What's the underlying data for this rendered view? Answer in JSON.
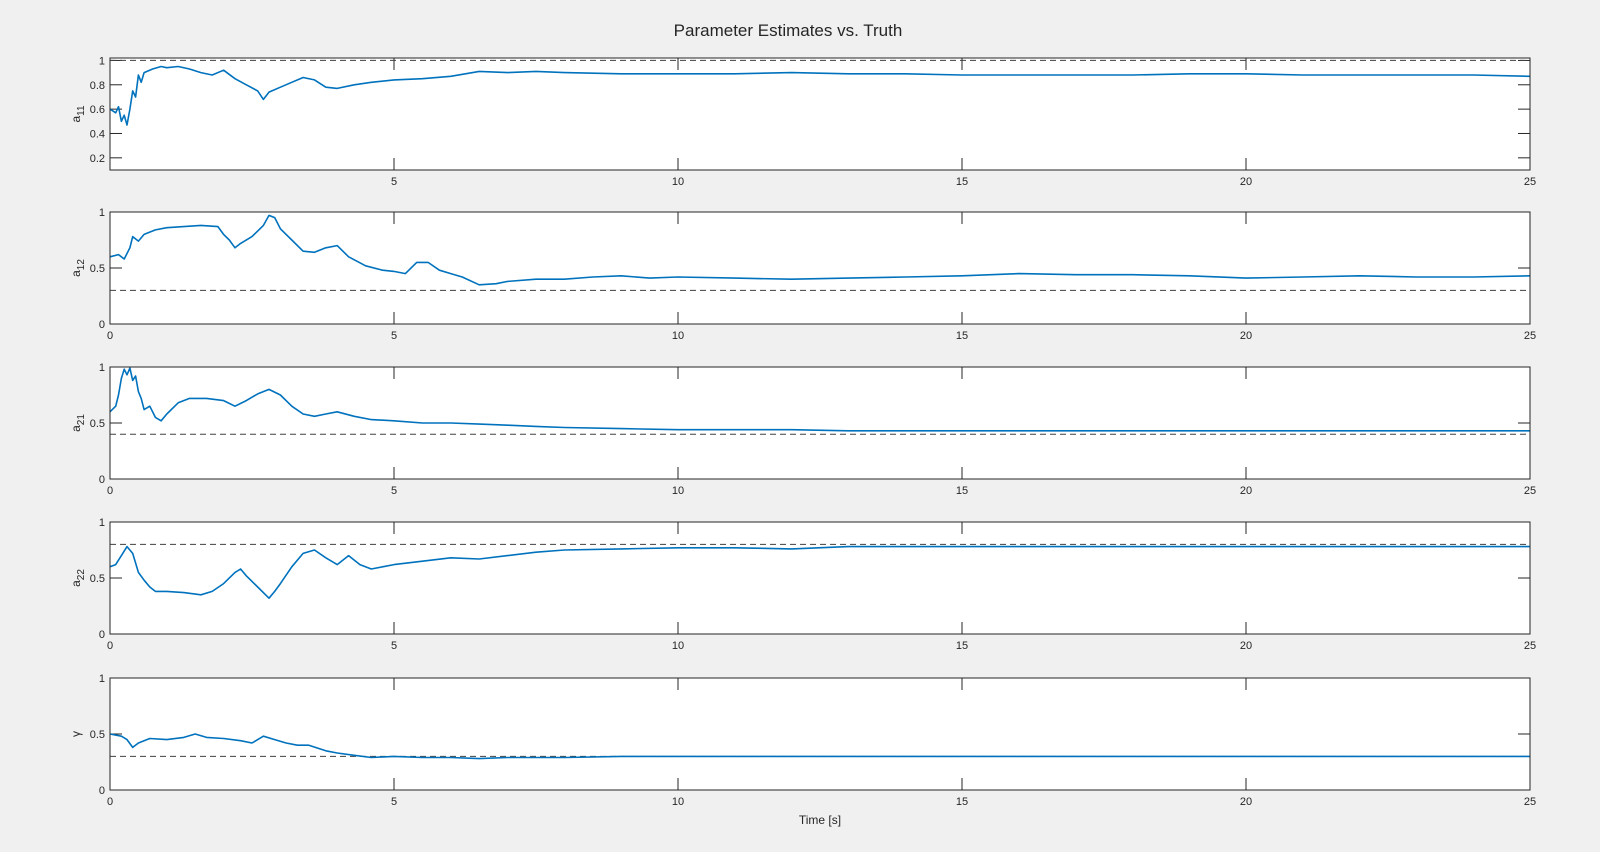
{
  "chart_data": {
    "type": "line",
    "title": "Parameter Estimates vs. Truth",
    "xlabel": "Time [s]",
    "xlim": [
      0,
      25
    ],
    "grid": false,
    "colors": {
      "estimate": "#0072bd",
      "truth": "#404040",
      "background": "#f0f0f0",
      "axes_bg": "#ffffff"
    },
    "subplots": [
      {
        "ylabel_base": "a",
        "ylabel_sub": "11",
        "ylim": [
          0.1,
          1.02
        ],
        "yticks": [
          "0.2",
          "0.4",
          "0.6",
          "0.8",
          "1"
        ],
        "xticks": [
          "5",
          "10",
          "15",
          "20",
          "25"
        ],
        "truth": 1.0,
        "estimate": [
          [
            0,
            0.6
          ],
          [
            0.1,
            0.57
          ],
          [
            0.15,
            0.62
          ],
          [
            0.2,
            0.5
          ],
          [
            0.25,
            0.55
          ],
          [
            0.3,
            0.47
          ],
          [
            0.35,
            0.6
          ],
          [
            0.4,
            0.75
          ],
          [
            0.45,
            0.7
          ],
          [
            0.5,
            0.88
          ],
          [
            0.55,
            0.82
          ],
          [
            0.6,
            0.9
          ],
          [
            0.75,
            0.93
          ],
          [
            0.9,
            0.95
          ],
          [
            1.0,
            0.94
          ],
          [
            1.2,
            0.95
          ],
          [
            1.4,
            0.93
          ],
          [
            1.6,
            0.9
          ],
          [
            1.8,
            0.88
          ],
          [
            2.0,
            0.92
          ],
          [
            2.2,
            0.85
          ],
          [
            2.4,
            0.8
          ],
          [
            2.6,
            0.75
          ],
          [
            2.7,
            0.68
          ],
          [
            2.8,
            0.74
          ],
          [
            3.0,
            0.78
          ],
          [
            3.2,
            0.82
          ],
          [
            3.4,
            0.86
          ],
          [
            3.6,
            0.84
          ],
          [
            3.8,
            0.78
          ],
          [
            4.0,
            0.77
          ],
          [
            4.3,
            0.8
          ],
          [
            4.6,
            0.82
          ],
          [
            5.0,
            0.84
          ],
          [
            5.5,
            0.85
          ],
          [
            6.0,
            0.87
          ],
          [
            6.5,
            0.91
          ],
          [
            7.0,
            0.9
          ],
          [
            7.5,
            0.91
          ],
          [
            8.0,
            0.9
          ],
          [
            9.0,
            0.89
          ],
          [
            10.0,
            0.89
          ],
          [
            11.0,
            0.89
          ],
          [
            12.0,
            0.9
          ],
          [
            13.0,
            0.89
          ],
          [
            14.0,
            0.89
          ],
          [
            15.0,
            0.88
          ],
          [
            16.0,
            0.88
          ],
          [
            17.0,
            0.88
          ],
          [
            18.0,
            0.88
          ],
          [
            19.0,
            0.89
          ],
          [
            20.0,
            0.89
          ],
          [
            21.0,
            0.88
          ],
          [
            22.0,
            0.88
          ],
          [
            23.0,
            0.88
          ],
          [
            24.0,
            0.88
          ],
          [
            25.0,
            0.87
          ]
        ]
      },
      {
        "ylabel_base": "a",
        "ylabel_sub": "12",
        "ylim": [
          0,
          1
        ],
        "yticks": [
          "0",
          "0.5",
          "1"
        ],
        "xticks": [
          "0",
          "5",
          "10",
          "15",
          "20",
          "25"
        ],
        "truth": 0.3,
        "estimate": [
          [
            0,
            0.6
          ],
          [
            0.15,
            0.62
          ],
          [
            0.25,
            0.58
          ],
          [
            0.35,
            0.68
          ],
          [
            0.4,
            0.78
          ],
          [
            0.5,
            0.74
          ],
          [
            0.6,
            0.8
          ],
          [
            0.8,
            0.84
          ],
          [
            1.0,
            0.86
          ],
          [
            1.3,
            0.87
          ],
          [
            1.6,
            0.88
          ],
          [
            1.9,
            0.87
          ],
          [
            2.0,
            0.8
          ],
          [
            2.1,
            0.75
          ],
          [
            2.2,
            0.68
          ],
          [
            2.3,
            0.72
          ],
          [
            2.5,
            0.78
          ],
          [
            2.7,
            0.88
          ],
          [
            2.8,
            0.97
          ],
          [
            2.9,
            0.95
          ],
          [
            3.0,
            0.85
          ],
          [
            3.2,
            0.75
          ],
          [
            3.4,
            0.65
          ],
          [
            3.6,
            0.64
          ],
          [
            3.8,
            0.68
          ],
          [
            4.0,
            0.7
          ],
          [
            4.2,
            0.6
          ],
          [
            4.5,
            0.52
          ],
          [
            4.8,
            0.48
          ],
          [
            5.0,
            0.47
          ],
          [
            5.2,
            0.45
          ],
          [
            5.4,
            0.55
          ],
          [
            5.6,
            0.55
          ],
          [
            5.8,
            0.48
          ],
          [
            6.0,
            0.45
          ],
          [
            6.2,
            0.42
          ],
          [
            6.5,
            0.35
          ],
          [
            6.8,
            0.36
          ],
          [
            7.0,
            0.38
          ],
          [
            7.5,
            0.4
          ],
          [
            8.0,
            0.4
          ],
          [
            8.5,
            0.42
          ],
          [
            9.0,
            0.43
          ],
          [
            9.5,
            0.41
          ],
          [
            10.0,
            0.42
          ],
          [
            11.0,
            0.41
          ],
          [
            12.0,
            0.4
          ],
          [
            13.0,
            0.41
          ],
          [
            14.0,
            0.42
          ],
          [
            15.0,
            0.43
          ],
          [
            16.0,
            0.45
          ],
          [
            17.0,
            0.44
          ],
          [
            18.0,
            0.44
          ],
          [
            19.0,
            0.43
          ],
          [
            20.0,
            0.41
          ],
          [
            21.0,
            0.42
          ],
          [
            22.0,
            0.43
          ],
          [
            23.0,
            0.42
          ],
          [
            24.0,
            0.42
          ],
          [
            25.0,
            0.43
          ]
        ]
      },
      {
        "ylabel_base": "a",
        "ylabel_sub": "21",
        "ylim": [
          0,
          1
        ],
        "yticks": [
          "0",
          "0.5",
          "1"
        ],
        "xticks": [
          "0",
          "5",
          "10",
          "15",
          "20",
          "25"
        ],
        "truth": 0.4,
        "estimate": [
          [
            0,
            0.6
          ],
          [
            0.1,
            0.65
          ],
          [
            0.15,
            0.75
          ],
          [
            0.2,
            0.9
          ],
          [
            0.25,
            0.98
          ],
          [
            0.3,
            0.93
          ],
          [
            0.35,
            0.99
          ],
          [
            0.4,
            0.88
          ],
          [
            0.45,
            0.92
          ],
          [
            0.5,
            0.78
          ],
          [
            0.55,
            0.72
          ],
          [
            0.6,
            0.62
          ],
          [
            0.7,
            0.65
          ],
          [
            0.8,
            0.55
          ],
          [
            0.9,
            0.52
          ],
          [
            1.0,
            0.58
          ],
          [
            1.2,
            0.68
          ],
          [
            1.4,
            0.72
          ],
          [
            1.7,
            0.72
          ],
          [
            2.0,
            0.7
          ],
          [
            2.2,
            0.65
          ],
          [
            2.4,
            0.7
          ],
          [
            2.6,
            0.76
          ],
          [
            2.8,
            0.8
          ],
          [
            3.0,
            0.75
          ],
          [
            3.2,
            0.65
          ],
          [
            3.4,
            0.58
          ],
          [
            3.6,
            0.56
          ],
          [
            3.8,
            0.58
          ],
          [
            4.0,
            0.6
          ],
          [
            4.3,
            0.56
          ],
          [
            4.6,
            0.53
          ],
          [
            5.0,
            0.52
          ],
          [
            5.5,
            0.5
          ],
          [
            6.0,
            0.5
          ],
          [
            6.5,
            0.49
          ],
          [
            7.0,
            0.48
          ],
          [
            7.5,
            0.47
          ],
          [
            8.0,
            0.46
          ],
          [
            9.0,
            0.45
          ],
          [
            10.0,
            0.44
          ],
          [
            11.0,
            0.44
          ],
          [
            12.0,
            0.44
          ],
          [
            13.0,
            0.43
          ],
          [
            14.0,
            0.43
          ],
          [
            15.0,
            0.43
          ],
          [
            16.0,
            0.43
          ],
          [
            18.0,
            0.43
          ],
          [
            20.0,
            0.43
          ],
          [
            22.0,
            0.43
          ],
          [
            24.0,
            0.43
          ],
          [
            25.0,
            0.43
          ]
        ]
      },
      {
        "ylabel_base": "a",
        "ylabel_sub": "22",
        "ylim": [
          0,
          1
        ],
        "yticks": [
          "0",
          "0.5",
          "1"
        ],
        "xticks": [
          "0",
          "5",
          "10",
          "15",
          "20",
          "25"
        ],
        "truth": 0.8,
        "estimate": [
          [
            0,
            0.6
          ],
          [
            0.1,
            0.62
          ],
          [
            0.2,
            0.7
          ],
          [
            0.3,
            0.78
          ],
          [
            0.4,
            0.72
          ],
          [
            0.5,
            0.55
          ],
          [
            0.6,
            0.48
          ],
          [
            0.7,
            0.42
          ],
          [
            0.8,
            0.38
          ],
          [
            1.0,
            0.38
          ],
          [
            1.3,
            0.37
          ],
          [
            1.6,
            0.35
          ],
          [
            1.8,
            0.38
          ],
          [
            2.0,
            0.45
          ],
          [
            2.2,
            0.55
          ],
          [
            2.3,
            0.58
          ],
          [
            2.4,
            0.52
          ],
          [
            2.6,
            0.42
          ],
          [
            2.8,
            0.32
          ],
          [
            2.9,
            0.38
          ],
          [
            3.0,
            0.45
          ],
          [
            3.2,
            0.6
          ],
          [
            3.4,
            0.72
          ],
          [
            3.6,
            0.75
          ],
          [
            3.8,
            0.68
          ],
          [
            4.0,
            0.62
          ],
          [
            4.2,
            0.7
          ],
          [
            4.4,
            0.62
          ],
          [
            4.6,
            0.58
          ],
          [
            4.8,
            0.6
          ],
          [
            5.0,
            0.62
          ],
          [
            5.5,
            0.65
          ],
          [
            6.0,
            0.68
          ],
          [
            6.5,
            0.67
          ],
          [
            7.0,
            0.7
          ],
          [
            7.5,
            0.73
          ],
          [
            8.0,
            0.75
          ],
          [
            9.0,
            0.76
          ],
          [
            10.0,
            0.77
          ],
          [
            11.0,
            0.77
          ],
          [
            12.0,
            0.76
          ],
          [
            13.0,
            0.78
          ],
          [
            14.0,
            0.78
          ],
          [
            15.0,
            0.78
          ],
          [
            16.0,
            0.78
          ],
          [
            18.0,
            0.78
          ],
          [
            20.0,
            0.78
          ],
          [
            22.0,
            0.78
          ],
          [
            24.0,
            0.78
          ],
          [
            25.0,
            0.78
          ]
        ]
      },
      {
        "ylabel_base": "γ",
        "ylabel_sub": "",
        "ylim": [
          0,
          1
        ],
        "yticks": [
          "0",
          "0.5",
          "1"
        ],
        "xticks": [
          "0",
          "5",
          "10",
          "15",
          "20",
          "25"
        ],
        "truth": 0.3,
        "estimate": [
          [
            0,
            0.5
          ],
          [
            0.2,
            0.48
          ],
          [
            0.3,
            0.45
          ],
          [
            0.4,
            0.38
          ],
          [
            0.5,
            0.42
          ],
          [
            0.7,
            0.46
          ],
          [
            1.0,
            0.45
          ],
          [
            1.3,
            0.47
          ],
          [
            1.5,
            0.5
          ],
          [
            1.7,
            0.47
          ],
          [
            2.0,
            0.46
          ],
          [
            2.3,
            0.44
          ],
          [
            2.5,
            0.42
          ],
          [
            2.7,
            0.48
          ],
          [
            2.9,
            0.45
          ],
          [
            3.1,
            0.42
          ],
          [
            3.3,
            0.4
          ],
          [
            3.5,
            0.4
          ],
          [
            3.8,
            0.35
          ],
          [
            4.0,
            0.33
          ],
          [
            4.3,
            0.31
          ],
          [
            4.6,
            0.29
          ],
          [
            5.0,
            0.3
          ],
          [
            5.5,
            0.29
          ],
          [
            6.0,
            0.29
          ],
          [
            6.5,
            0.28
          ],
          [
            7.0,
            0.29
          ],
          [
            8.0,
            0.29
          ],
          [
            9.0,
            0.3
          ],
          [
            10.0,
            0.3
          ],
          [
            12.0,
            0.3
          ],
          [
            14.0,
            0.3
          ],
          [
            16.0,
            0.3
          ],
          [
            18.0,
            0.3
          ],
          [
            20.0,
            0.3
          ],
          [
            22.0,
            0.3
          ],
          [
            24.0,
            0.3
          ],
          [
            25.0,
            0.3
          ]
        ]
      }
    ]
  }
}
